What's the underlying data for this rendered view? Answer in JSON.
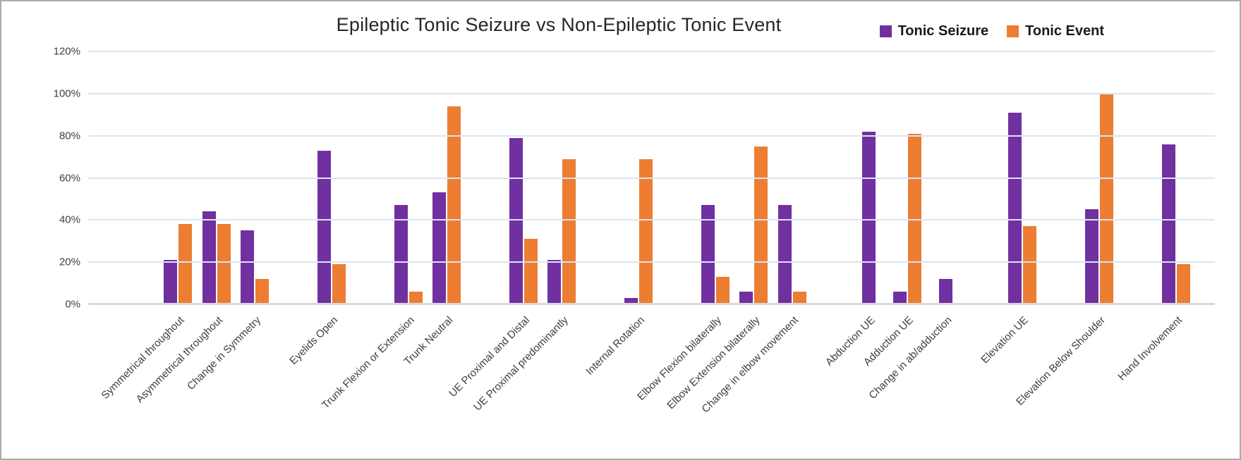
{
  "page": {
    "background": "#ffffff",
    "border_color": "#ababab"
  },
  "chart_data": {
    "type": "bar",
    "title": "Epileptic Tonic Seizure vs Non-Epileptic Tonic Event",
    "xlabel": "",
    "ylabel": "",
    "ylim": [
      0,
      120
    ],
    "yticks": [
      "120%",
      "100%",
      "80%",
      "60%",
      "40%",
      "20%",
      "0%"
    ],
    "grid": true,
    "legend_position": "top-right",
    "categories": [
      "Symmetrical throughout",
      "Asymmetrical throughout",
      "Change in Symmetry",
      "Eyelids Open",
      "Trunk Flexion or Extension",
      "Trunk Neutral",
      "UE Proximal and Distal",
      "UE Proximal predominantly",
      "Internal Rotation",
      "Elbow Flexion bilaterally",
      "Elbow Extension bilaterally",
      "Change in elbow movement",
      "Abduction UE",
      "Adduction UE",
      "Change in ab/adduction",
      "Elevation UE",
      "Elevation Below Shoulder",
      "Hand Involvement"
    ],
    "slots": [
      0,
      1,
      2,
      null,
      3,
      null,
      4,
      5,
      null,
      6,
      7,
      null,
      8,
      null,
      9,
      10,
      11,
      null,
      12,
      13,
      14,
      null,
      15,
      null,
      16,
      null,
      17
    ],
    "series": [
      {
        "name": "Tonic Seizure",
        "color": "#7030A0",
        "values": [
          21,
          44,
          35,
          73,
          47,
          53,
          79,
          21,
          3,
          47,
          6,
          47,
          82,
          6,
          12,
          91,
          45,
          76
        ]
      },
      {
        "name": "Tonic Event",
        "color": "#ED7D31",
        "values": [
          38,
          38,
          12,
          19,
          6,
          94,
          31,
          69,
          69,
          13,
          75,
          6,
          0,
          81,
          0,
          37,
          100,
          19
        ]
      }
    ],
    "colors": {
      "gridline": "#dbe5f1",
      "axis": "#d9d9d9",
      "tick_label": "#404040",
      "title": "#262626"
    }
  }
}
